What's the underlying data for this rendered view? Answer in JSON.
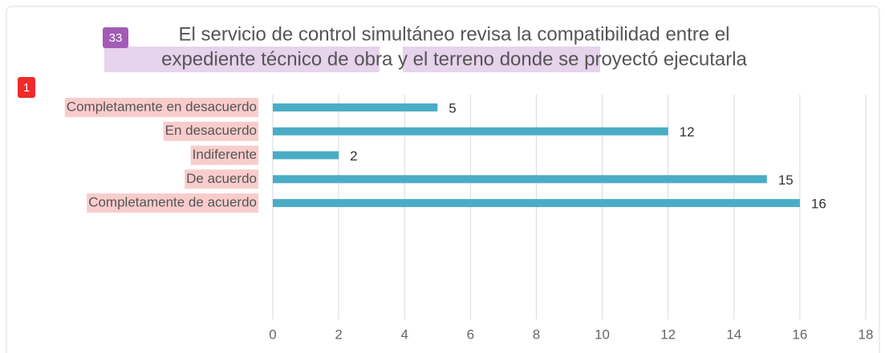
{
  "chart_data": {
    "type": "bar",
    "orientation": "horizontal",
    "title": [
      "El servicio de control simultáneo revisa la compatibilidad entre el",
      "expediente técnico de obra y el terreno donde se proyectó ejecutarla"
    ],
    "annotations": [
      "33",
      "1"
    ],
    "categories": [
      "Completamente en desacuerdo",
      "En desacuerdo",
      "Indiferente",
      "De acuerdo",
      "Completamente de acuerdo"
    ],
    "values": [
      5,
      12,
      2,
      15,
      16
    ],
    "color": "#4bacc6",
    "xlim": [
      0,
      18
    ],
    "xticks": [
      0,
      2,
      4,
      6,
      8,
      10,
      12,
      14,
      16,
      18
    ],
    "grid": true
  }
}
